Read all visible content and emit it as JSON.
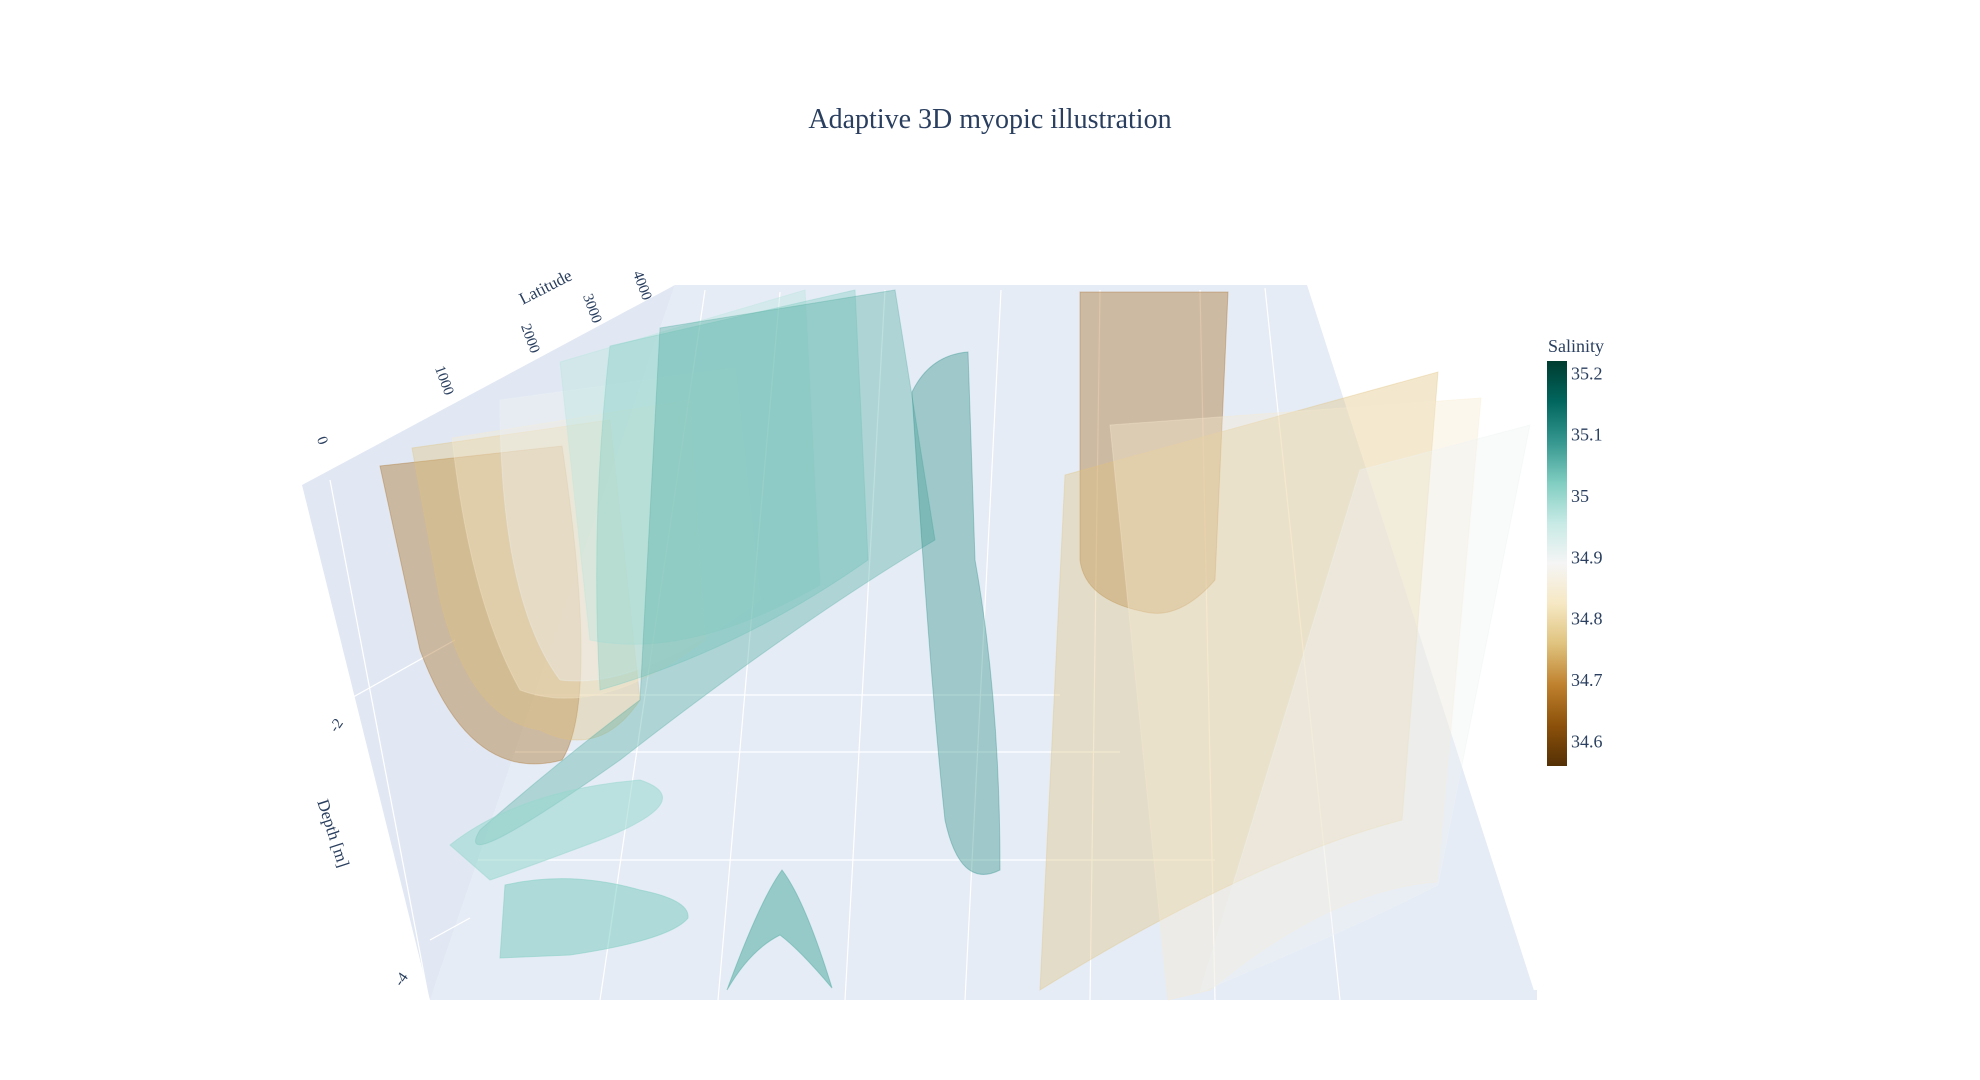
{
  "title": "Adaptive 3D myopic illustration",
  "chart_data": {
    "type": "isosurface-3d",
    "title": "Adaptive 3D myopic illustration",
    "axes": {
      "latitude": {
        "label": "Latitude",
        "ticks": [
          "0",
          "1000",
          "2000",
          "3000",
          "4000"
        ]
      },
      "depth": {
        "label": "Depth [m]",
        "ticks": [
          "-2",
          "-4"
        ]
      }
    },
    "colorbar": {
      "title": "Salinity",
      "ticks": [
        "35.2",
        "35.1",
        "35",
        "34.9",
        "34.8",
        "34.7",
        "34.6"
      ],
      "min": 34.56,
      "max": 35.22,
      "colorscale": [
        "#543005",
        "#8c510a",
        "#bf812d",
        "#dfc27d",
        "#f6e8c3",
        "#f5f5f5",
        "#c7eae5",
        "#80cdc1",
        "#35978f",
        "#01665e",
        "#003c30"
      ]
    },
    "colors": {
      "scene_background": "#e5ecf6",
      "grid": "#ffffff",
      "text": "#2a3f5f"
    },
    "isosurface_salinity_values": [
      34.66,
      34.76,
      34.84,
      34.9,
      34.97,
      35.02,
      35.06,
      35.1
    ]
  }
}
